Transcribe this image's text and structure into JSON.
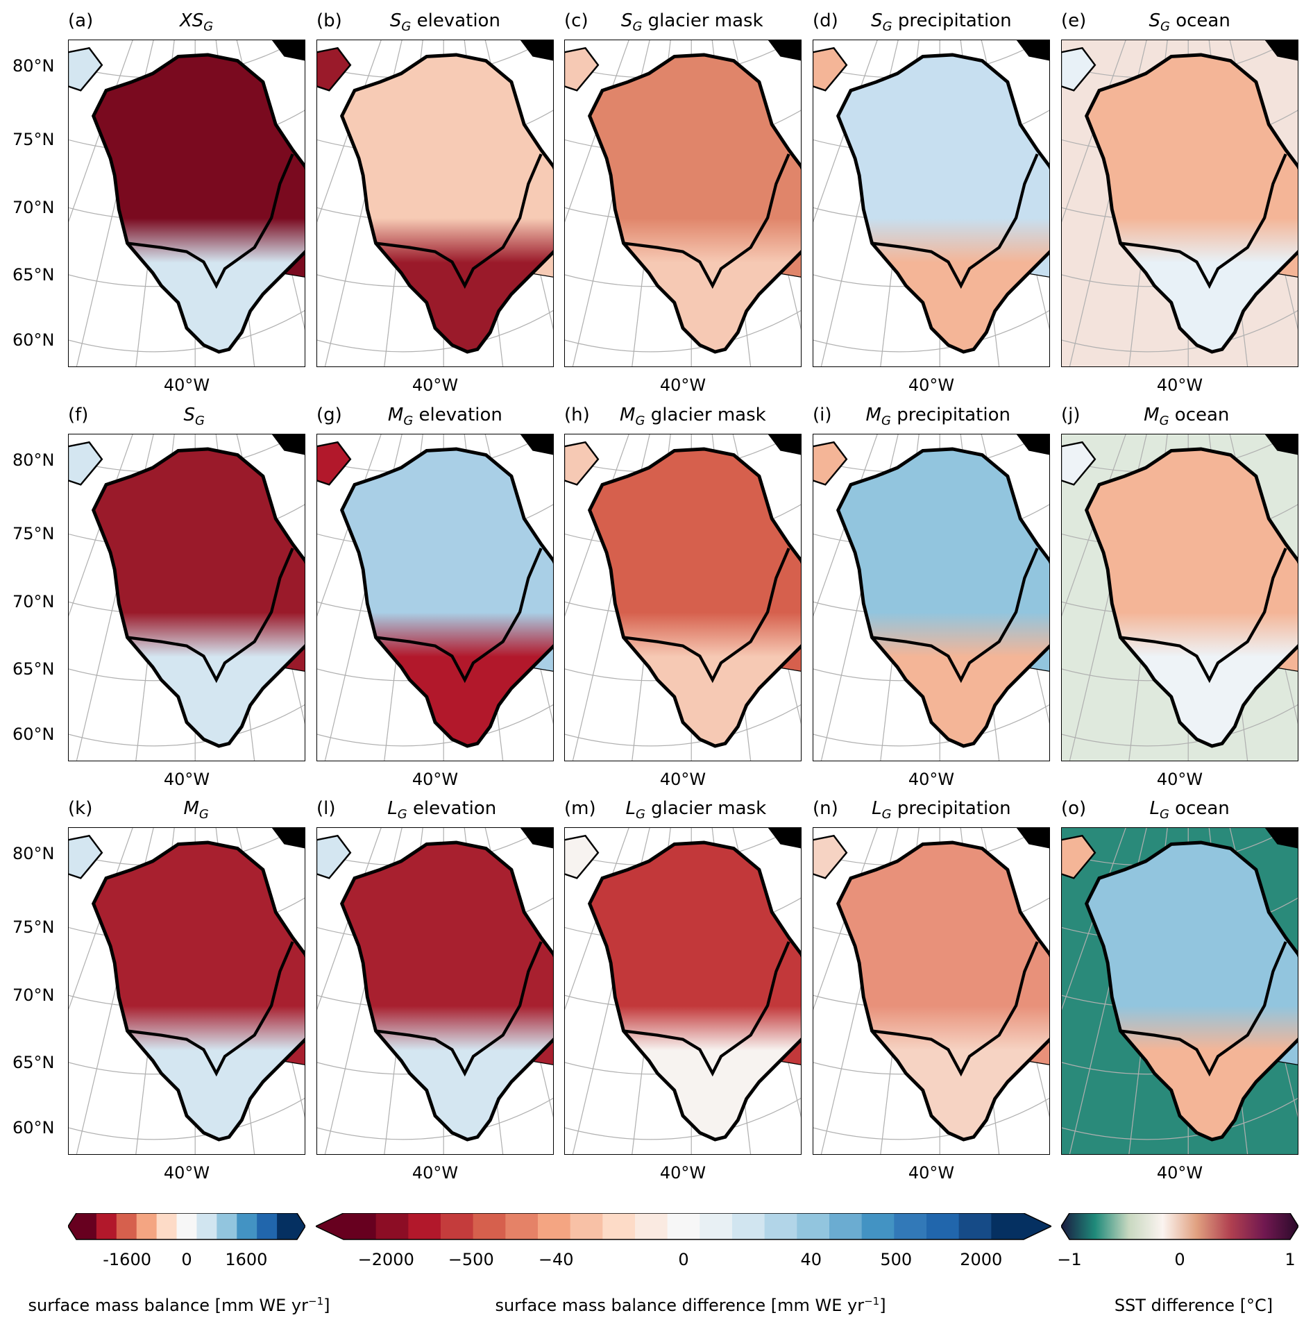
{
  "lat_labels": [
    "80°N",
    "75°N",
    "70°N",
    "65°N",
    "60°N"
  ],
  "lon_label": "40°W",
  "panels": [
    {
      "label": "(a)",
      "var": "XS",
      "sub": "G",
      "rest": "",
      "north": "#7a0a1f",
      "south": "#d4e6f1",
      "outside": "#ffffff"
    },
    {
      "label": "(b)",
      "var": "S",
      "sub": "G",
      "rest": "elevation",
      "north": "#f7cbb5",
      "south": "#9a1a2a",
      "outside": "#ffffff"
    },
    {
      "label": "(c)",
      "var": "S",
      "sub": "G",
      "rest": "glacier mask",
      "north": "#e0856a",
      "south": "#f6c9b4",
      "outside": "#ffffff"
    },
    {
      "label": "(d)",
      "var": "S",
      "sub": "G",
      "rest": "precipitation",
      "north": "#c7dff0",
      "south": "#f4b597",
      "outside": "#ffffff"
    },
    {
      "label": "(e)",
      "var": "S",
      "sub": "G",
      "rest": "ocean",
      "north": "#f4b597",
      "south": "#e8f1f7",
      "outside": "#f3e3dc"
    },
    {
      "label": "(f)",
      "var": "S",
      "sub": "G",
      "rest": "",
      "north": "#9a1a2a",
      "south": "#d4e6f1",
      "outside": "#ffffff"
    },
    {
      "label": "(g)",
      "var": "M",
      "sub": "G",
      "rest": "elevation",
      "north": "#a9cfe6",
      "south": "#b2182b",
      "outside": "#ffffff"
    },
    {
      "label": "(h)",
      "var": "M",
      "sub": "G",
      "rest": "glacier mask",
      "north": "#d6604d",
      "south": "#f6c9b4",
      "outside": "#ffffff"
    },
    {
      "label": "(i)",
      "var": "M",
      "sub": "G",
      "rest": "precipitation",
      "north": "#92c5de",
      "south": "#f4b597",
      "outside": "#ffffff"
    },
    {
      "label": "(j)",
      "var": "M",
      "sub": "G",
      "rest": "ocean",
      "north": "#f4b597",
      "south": "#eef3f7",
      "outside": "#dfe9dd"
    },
    {
      "label": "(k)",
      "var": "M",
      "sub": "G",
      "rest": "",
      "north": "#a8202f",
      "south": "#d4e6f1",
      "outside": "#ffffff"
    },
    {
      "label": "(l)",
      "var": "L",
      "sub": "G",
      "rest": "elevation",
      "north": "#a8202f",
      "south": "#d4e6f1",
      "outside": "#ffffff"
    },
    {
      "label": "(m)",
      "var": "L",
      "sub": "G",
      "rest": "glacier mask",
      "north": "#c2383a",
      "south": "#f7f3f0",
      "outside": "#ffffff"
    },
    {
      "label": "(n)",
      "var": "L",
      "sub": "G",
      "rest": "precipitation",
      "north": "#e8917a",
      "south": "#f6d3c3",
      "outside": "#ffffff"
    },
    {
      "label": "(o)",
      "var": "L",
      "sub": "G",
      "rest": "ocean",
      "north": "#92c5de",
      "south": "#f4b597",
      "outside": "#2a8a7a"
    }
  ],
  "colorbars": [
    {
      "label_pre": "surface mass balance [mm WE yr",
      "label_sup": "−1",
      "label_post": "]",
      "ticks": [
        "-1600",
        "0",
        "1600"
      ],
      "colors": [
        "#67001f",
        "#b2182b",
        "#d6604d",
        "#f4a582",
        "#fddbc7",
        "#f7f7f7",
        "#d1e5f0",
        "#92c5de",
        "#4393c3",
        "#2166ac",
        "#053061"
      ]
    },
    {
      "label_pre": "surface mass balance difference [mm WE yr",
      "label_sup": "−1",
      "label_post": "]",
      "ticks": [
        "−2000",
        "−500",
        "−40",
        "0",
        "40",
        "500",
        "2000"
      ],
      "colors": [
        "#67001f",
        "#8c0d25",
        "#b2182b",
        "#c43c3c",
        "#d6604d",
        "#e58267",
        "#f4a582",
        "#f8c1a6",
        "#fddbc7",
        "#faeae1",
        "#f7f7f7",
        "#e8f0f4",
        "#d1e5f0",
        "#b2d5e8",
        "#92c5de",
        "#6bacd1",
        "#4393c3",
        "#3279b8",
        "#2166ac",
        "#164b87",
        "#053061"
      ]
    },
    {
      "label_pre": "SST difference [°C]",
      "label_sup": "",
      "label_post": "",
      "ticks": [
        "−1",
        "0",
        "1"
      ],
      "colors": [
        "#1a1a40",
        "#1f8a7a",
        "#c8d8c0",
        "#fbf4f0",
        "#e0a080",
        "#b04050",
        "#701850",
        "#2a0a2a"
      ]
    }
  ]
}
